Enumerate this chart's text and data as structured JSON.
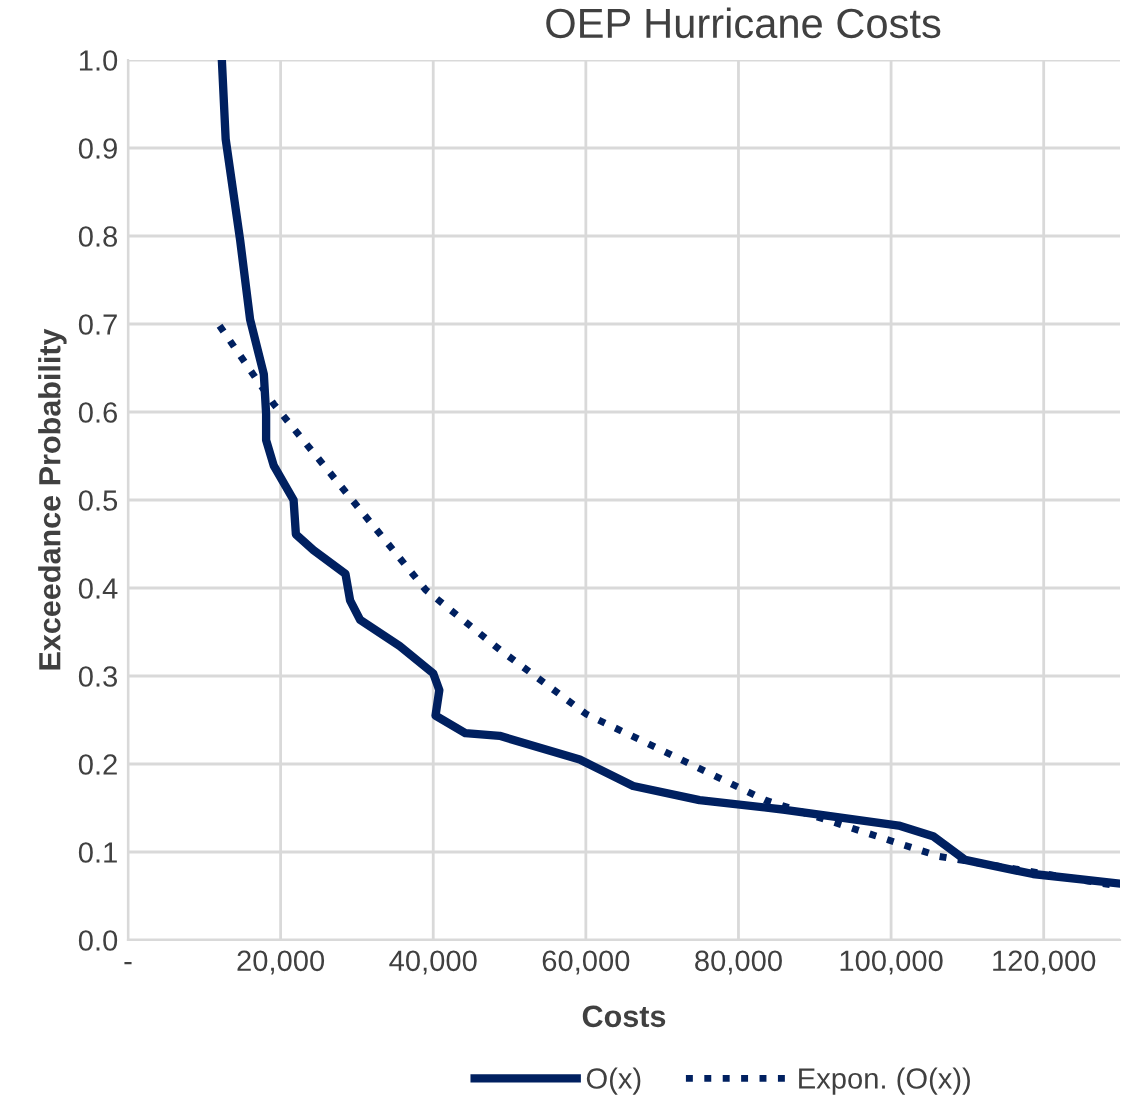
{
  "chart_data": {
    "type": "line",
    "title": "OEP Hurricane Costs",
    "xlabel": "Costs",
    "ylabel": "Exceedance Probability",
    "xlim": [
      0,
      130000
    ],
    "ylim": [
      0,
      1.0
    ],
    "xticks": [
      {
        "value": 0,
        "label": "-"
      },
      {
        "value": 20000,
        "label": "20,000"
      },
      {
        "value": 40000,
        "label": "40,000"
      },
      {
        "value": 60000,
        "label": "60,000"
      },
      {
        "value": 80000,
        "label": "80,000"
      },
      {
        "value": 100000,
        "label": "100,000"
      },
      {
        "value": 120000,
        "label": "120,000"
      }
    ],
    "yticks": [
      {
        "value": 0,
        "label": "0.0"
      },
      {
        "value": 0.1,
        "label": "0.1"
      },
      {
        "value": 0.2,
        "label": "0.2"
      },
      {
        "value": 0.3,
        "label": "0.3"
      },
      {
        "value": 0.4,
        "label": "0.4"
      },
      {
        "value": 0.5,
        "label": "0.5"
      },
      {
        "value": 0.6,
        "label": "0.6"
      },
      {
        "value": 0.7,
        "label": "0.7"
      },
      {
        "value": 0.8,
        "label": "0.8"
      },
      {
        "value": 0.9,
        "label": "0.9"
      },
      {
        "value": 1.0,
        "label": "1.0"
      }
    ],
    "grid": true,
    "legend": "bottom",
    "series": [
      {
        "name": "O(x)",
        "color": "#002060",
        "line_style": "solid",
        "x": [
          12300,
          12800,
          14700,
          16000,
          17800,
          18100,
          18100,
          19100,
          21700,
          22000,
          24300,
          28500,
          29100,
          30400,
          35600,
          40000,
          40800,
          40300,
          44200,
          48700,
          59200,
          66200,
          74900,
          86100,
          101000,
          105500,
          109700,
          118600,
          130000
        ],
        "values": [
          1.0,
          0.91,
          0.795,
          0.705,
          0.643,
          0.598,
          0.568,
          0.539,
          0.5,
          0.461,
          0.443,
          0.416,
          0.386,
          0.364,
          0.334,
          0.303,
          0.284,
          0.255,
          0.235,
          0.232,
          0.205,
          0.175,
          0.159,
          0.148,
          0.13,
          0.118,
          0.091,
          0.075,
          0.064
        ]
      },
      {
        "name": "Expon. (O(x))",
        "color": "#002060",
        "line_style": "dotted",
        "x": [
          12000,
          19100,
          39000,
          48700,
          60000,
          83500,
          106300,
          130000
        ],
        "values": [
          0.698,
          0.609,
          0.398,
          0.33,
          0.257,
          0.159,
          0.095,
          0.061
        ]
      }
    ]
  }
}
